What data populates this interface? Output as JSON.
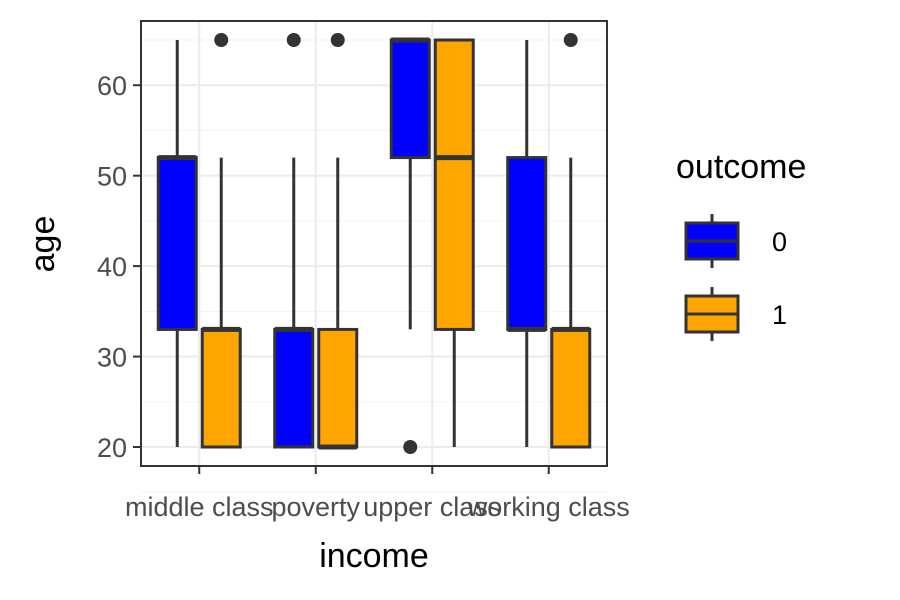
{
  "chart_data": {
    "type": "boxplot",
    "xlabel": "income",
    "ylabel": "age",
    "categories": [
      "middle class",
      "poverty",
      "upper class",
      "working class"
    ],
    "y_ticks": [
      20,
      30,
      40,
      50,
      60
    ],
    "ylim": [
      17.9,
      67.1
    ],
    "grid": true,
    "legend": {
      "title": "outcome",
      "position": "right"
    },
    "series": [
      {
        "name": "0",
        "color": "#0000ff",
        "boxes": [
          {
            "category": "middle class",
            "min": 20,
            "q1": 33,
            "median": 52,
            "q3": 52,
            "max": 65,
            "outliers": []
          },
          {
            "category": "poverty",
            "min": 20,
            "q1": 20,
            "median": 33,
            "q3": 33,
            "max": 52,
            "outliers": [
              65
            ]
          },
          {
            "category": "upper class",
            "min": 33,
            "q1": 52,
            "median": 65,
            "q3": 65,
            "max": 65,
            "outliers": [
              20
            ]
          },
          {
            "category": "working class",
            "min": 20,
            "q1": 33,
            "median": 33,
            "q3": 52,
            "max": 65,
            "outliers": []
          }
        ]
      },
      {
        "name": "1",
        "color": "#ffa500",
        "boxes": [
          {
            "category": "middle class",
            "min": 20,
            "q1": 20,
            "median": 33,
            "q3": 33,
            "max": 52,
            "outliers": [
              65
            ]
          },
          {
            "category": "poverty",
            "min": 20,
            "q1": 20,
            "median": 20,
            "q3": 33,
            "max": 52,
            "outliers": [
              65
            ]
          },
          {
            "category": "upper class",
            "min": 20,
            "q1": 33,
            "median": 52,
            "q3": 65,
            "max": 65,
            "outliers": []
          },
          {
            "category": "working class",
            "min": 20,
            "q1": 20,
            "median": 33,
            "q3": 33,
            "max": 52,
            "outliers": [
              65
            ]
          }
        ]
      }
    ]
  }
}
